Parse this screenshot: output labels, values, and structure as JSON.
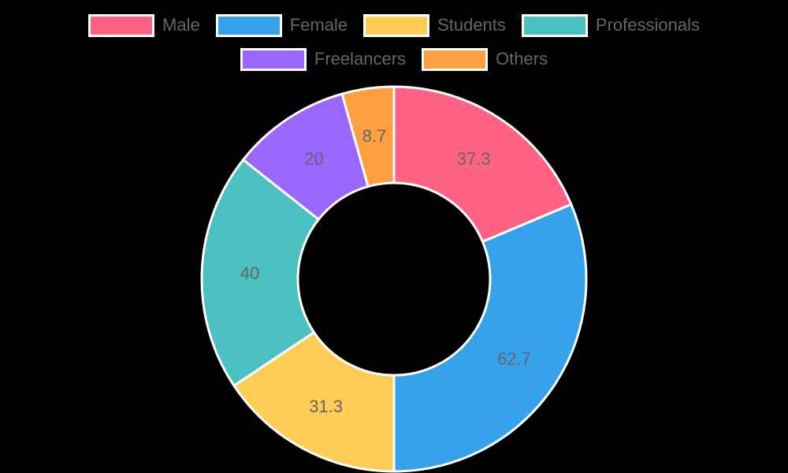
{
  "chart_data": {
    "type": "pie",
    "variant": "doughnut",
    "title": "",
    "categories": [
      "Male",
      "Female",
      "Students",
      "Professionals",
      "Freelancers",
      "Others"
    ],
    "values": [
      37.3,
      62.7,
      31.3,
      40,
      20,
      8.7
    ],
    "colors": [
      "#ff6384",
      "#36a2eb",
      "#ffcd56",
      "#4bc0c0",
      "#9966ff",
      "#ff9f40"
    ],
    "legend_position": "top",
    "data_labels": [
      "37.3",
      "62.7",
      "31.3",
      "40",
      "20",
      "8.7"
    ]
  },
  "legend": {
    "items": [
      {
        "label": "Male",
        "color": "#ff6384"
      },
      {
        "label": "Female",
        "color": "#36a2eb"
      },
      {
        "label": "Students",
        "color": "#ffcd56"
      },
      {
        "label": "Professionals",
        "color": "#4bc0c0"
      },
      {
        "label": "Freelancers",
        "color": "#9966ff"
      },
      {
        "label": "Others",
        "color": "#ff9f40"
      }
    ]
  }
}
